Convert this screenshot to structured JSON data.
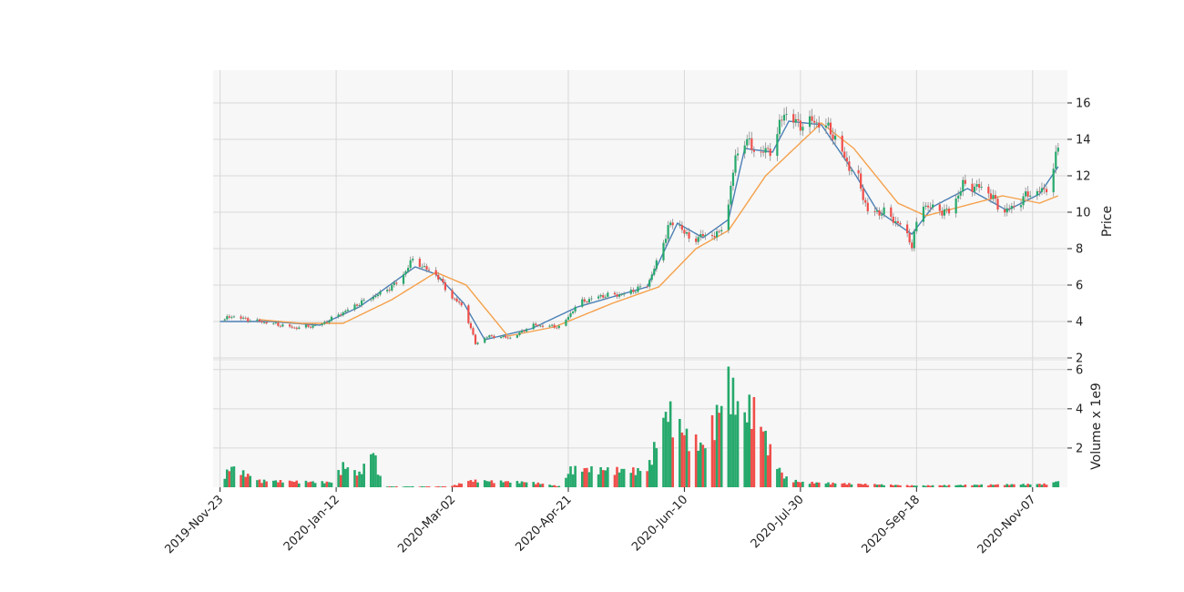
{
  "chart_data": [
    {
      "type": "candlestick",
      "panel": "price",
      "ylabel": "Price",
      "ylim": [
        1.9,
        17.8
      ],
      "yticks": [
        2,
        4,
        6,
        8,
        10,
        12,
        14,
        16
      ],
      "xlim": [
        "2019-11-20",
        "2020-11-22"
      ],
      "xticks": [
        "2019-11-23",
        "2020-01-12",
        "2020-03-02",
        "2020-04-21",
        "2020-06-10",
        "2020-07-30",
        "2020-09-18",
        "2020-11-07"
      ],
      "xtick_labels": [
        "2019-Nov-23",
        "2020-Jan-12",
        "2020-Mar-02",
        "2020-Apr-21",
        "2020-Jun-10",
        "2020-Jul-30",
        "2020-Sep-18",
        "2020-Nov-07"
      ],
      "grid": true,
      "colors": {
        "up": "#26a96c",
        "down": "#f04e4a",
        "wick": "#8a8a8a",
        "ma_fast": "#4a7fb5",
        "ma_slow": "#f5a04a",
        "grid": "#d8d8d8",
        "panel_bg": "#f7f7f7"
      },
      "close_anchors": [
        [
          "2019-11-23",
          4.0
        ],
        [
          "2019-11-28",
          4.3
        ],
        [
          "2019-12-05",
          4.1
        ],
        [
          "2019-12-15",
          3.9
        ],
        [
          "2019-12-25",
          3.65
        ],
        [
          "2020-01-05",
          3.8
        ],
        [
          "2020-01-15",
          4.5
        ],
        [
          "2020-01-22",
          5.0
        ],
        [
          "2020-02-01",
          5.6
        ],
        [
          "2020-02-08",
          6.2
        ],
        [
          "2020-02-15",
          7.6
        ],
        [
          "2020-02-18",
          7.0
        ],
        [
          "2020-02-24",
          6.6
        ],
        [
          "2020-03-02",
          5.3
        ],
        [
          "2020-03-07",
          4.8
        ],
        [
          "2020-03-12",
          2.8
        ],
        [
          "2020-03-18",
          3.2
        ],
        [
          "2020-03-28",
          3.1
        ],
        [
          "2020-04-05",
          3.8
        ],
        [
          "2020-04-18",
          3.7
        ],
        [
          "2020-04-25",
          5.0
        ],
        [
          "2020-05-05",
          5.4
        ],
        [
          "2020-05-15",
          5.5
        ],
        [
          "2020-05-25",
          6.0
        ],
        [
          "2020-05-30",
          7.5
        ],
        [
          "2020-06-03",
          9.2
        ],
        [
          "2020-06-07",
          9.5
        ],
        [
          "2020-06-12",
          8.5
        ],
        [
          "2020-06-18",
          8.7
        ],
        [
          "2020-06-25",
          8.8
        ],
        [
          "2020-06-29",
          10.5
        ],
        [
          "2020-07-02",
          13.0
        ],
        [
          "2020-07-06",
          14.0
        ],
        [
          "2020-07-12",
          13.2
        ],
        [
          "2020-07-18",
          13.5
        ],
        [
          "2020-07-23",
          15.5
        ],
        [
          "2020-07-29",
          14.8
        ],
        [
          "2020-08-05",
          15.0
        ],
        [
          "2020-08-12",
          14.5
        ],
        [
          "2020-08-20",
          12.5
        ],
        [
          "2020-08-24",
          11.8
        ],
        [
          "2020-08-28",
          10.0
        ],
        [
          "2020-09-04",
          10.0
        ],
        [
          "2020-09-12",
          9.2
        ],
        [
          "2020-09-16",
          8.2
        ],
        [
          "2020-09-20",
          10.5
        ],
        [
          "2020-09-25",
          10.2
        ],
        [
          "2020-10-02",
          10.0
        ],
        [
          "2020-10-08",
          11.5
        ],
        [
          "2020-10-18",
          11.3
        ],
        [
          "2020-10-25",
          10.0
        ],
        [
          "2020-10-30",
          10.3
        ],
        [
          "2020-11-05",
          11.0
        ],
        [
          "2020-11-12",
          11.2
        ],
        [
          "2020-11-15",
          11.8
        ],
        [
          "2020-11-18",
          13.6
        ]
      ],
      "series": [
        {
          "role": "moving_average_fast",
          "color": "#4a7fb5",
          "anchors": [
            [
              "2019-11-23",
              4.0
            ],
            [
              "2019-12-15",
              4.0
            ],
            [
              "2020-01-05",
              3.8
            ],
            [
              "2020-01-22",
              4.8
            ],
            [
              "2020-02-15",
              7.0
            ],
            [
              "2020-02-24",
              6.6
            ],
            [
              "2020-03-07",
              5.0
            ],
            [
              "2020-03-16",
              3.0
            ],
            [
              "2020-04-05",
              3.6
            ],
            [
              "2020-04-25",
              4.8
            ],
            [
              "2020-05-25",
              5.9
            ],
            [
              "2020-06-07",
              9.4
            ],
            [
              "2020-06-18",
              8.6
            ],
            [
              "2020-06-29",
              9.6
            ],
            [
              "2020-07-06",
              13.5
            ],
            [
              "2020-07-18",
              13.3
            ],
            [
              "2020-07-25",
              15.0
            ],
            [
              "2020-08-08",
              14.8
            ],
            [
              "2020-08-22",
              12.2
            ],
            [
              "2020-09-01",
              10.1
            ],
            [
              "2020-09-16",
              8.8
            ],
            [
              "2020-09-25",
              10.3
            ],
            [
              "2020-10-10",
              11.3
            ],
            [
              "2020-10-27",
              10.1
            ],
            [
              "2020-11-10",
              11.0
            ],
            [
              "2020-11-18",
              12.5
            ]
          ]
        },
        {
          "role": "moving_average_slow",
          "color": "#f5a04a",
          "anchors": [
            [
              "2019-12-10",
              4.1
            ],
            [
              "2019-12-28",
              3.9
            ],
            [
              "2020-01-15",
              3.9
            ],
            [
              "2020-02-05",
              5.2
            ],
            [
              "2020-02-24",
              6.7
            ],
            [
              "2020-03-08",
              6.0
            ],
            [
              "2020-03-26",
              3.2
            ],
            [
              "2020-04-15",
              3.7
            ],
            [
              "2020-05-10",
              5.0
            ],
            [
              "2020-05-30",
              5.9
            ],
            [
              "2020-06-15",
              8.0
            ],
            [
              "2020-06-29",
              9.0
            ],
            [
              "2020-07-15",
              12.0
            ],
            [
              "2020-08-08",
              14.9
            ],
            [
              "2020-08-22",
              13.5
            ],
            [
              "2020-09-10",
              10.5
            ],
            [
              "2020-09-22",
              9.8
            ],
            [
              "2020-10-10",
              10.4
            ],
            [
              "2020-10-25",
              10.9
            ],
            [
              "2020-11-10",
              10.5
            ],
            [
              "2020-11-18",
              10.9
            ]
          ]
        }
      ]
    },
    {
      "type": "bar",
      "panel": "volume",
      "ylabel": "Volume x 1e9",
      "ylim": [
        0,
        6.5
      ],
      "yticks": [
        2,
        4,
        6
      ],
      "grid": true,
      "anchors": [
        [
          "2019-11-23",
          0.5
        ],
        [
          "2019-11-28",
          1.2
        ],
        [
          "2019-12-10",
          0.4
        ],
        [
          "2020-01-10",
          0.3
        ],
        [
          "2020-01-15",
          1.3
        ],
        [
          "2020-01-22",
          0.8
        ],
        [
          "2020-01-28",
          2.2
        ],
        [
          "2020-02-01",
          0.05
        ],
        [
          "2020-03-01",
          0.05
        ],
        [
          "2020-03-10",
          0.4
        ],
        [
          "2020-04-05",
          0.3
        ],
        [
          "2020-04-18",
          0.05
        ],
        [
          "2020-04-22",
          1.1
        ],
        [
          "2020-05-25",
          1.0
        ],
        [
          "2020-05-30",
          3.2
        ],
        [
          "2020-06-03",
          4.6
        ],
        [
          "2020-06-10",
          3.2
        ],
        [
          "2020-06-18",
          2.4
        ],
        [
          "2020-06-27",
          5.3
        ],
        [
          "2020-06-29",
          6.4
        ],
        [
          "2020-07-05",
          4.0
        ],
        [
          "2020-07-09",
          5.0
        ],
        [
          "2020-07-12",
          4.2
        ],
        [
          "2020-07-18",
          1.8
        ],
        [
          "2020-07-23",
          0.6
        ],
        [
          "2020-07-30",
          0.3
        ],
        [
          "2020-09-18",
          0.1
        ],
        [
          "2020-11-15",
          0.2
        ],
        [
          "2020-11-18",
          0.4
        ]
      ]
    }
  ]
}
